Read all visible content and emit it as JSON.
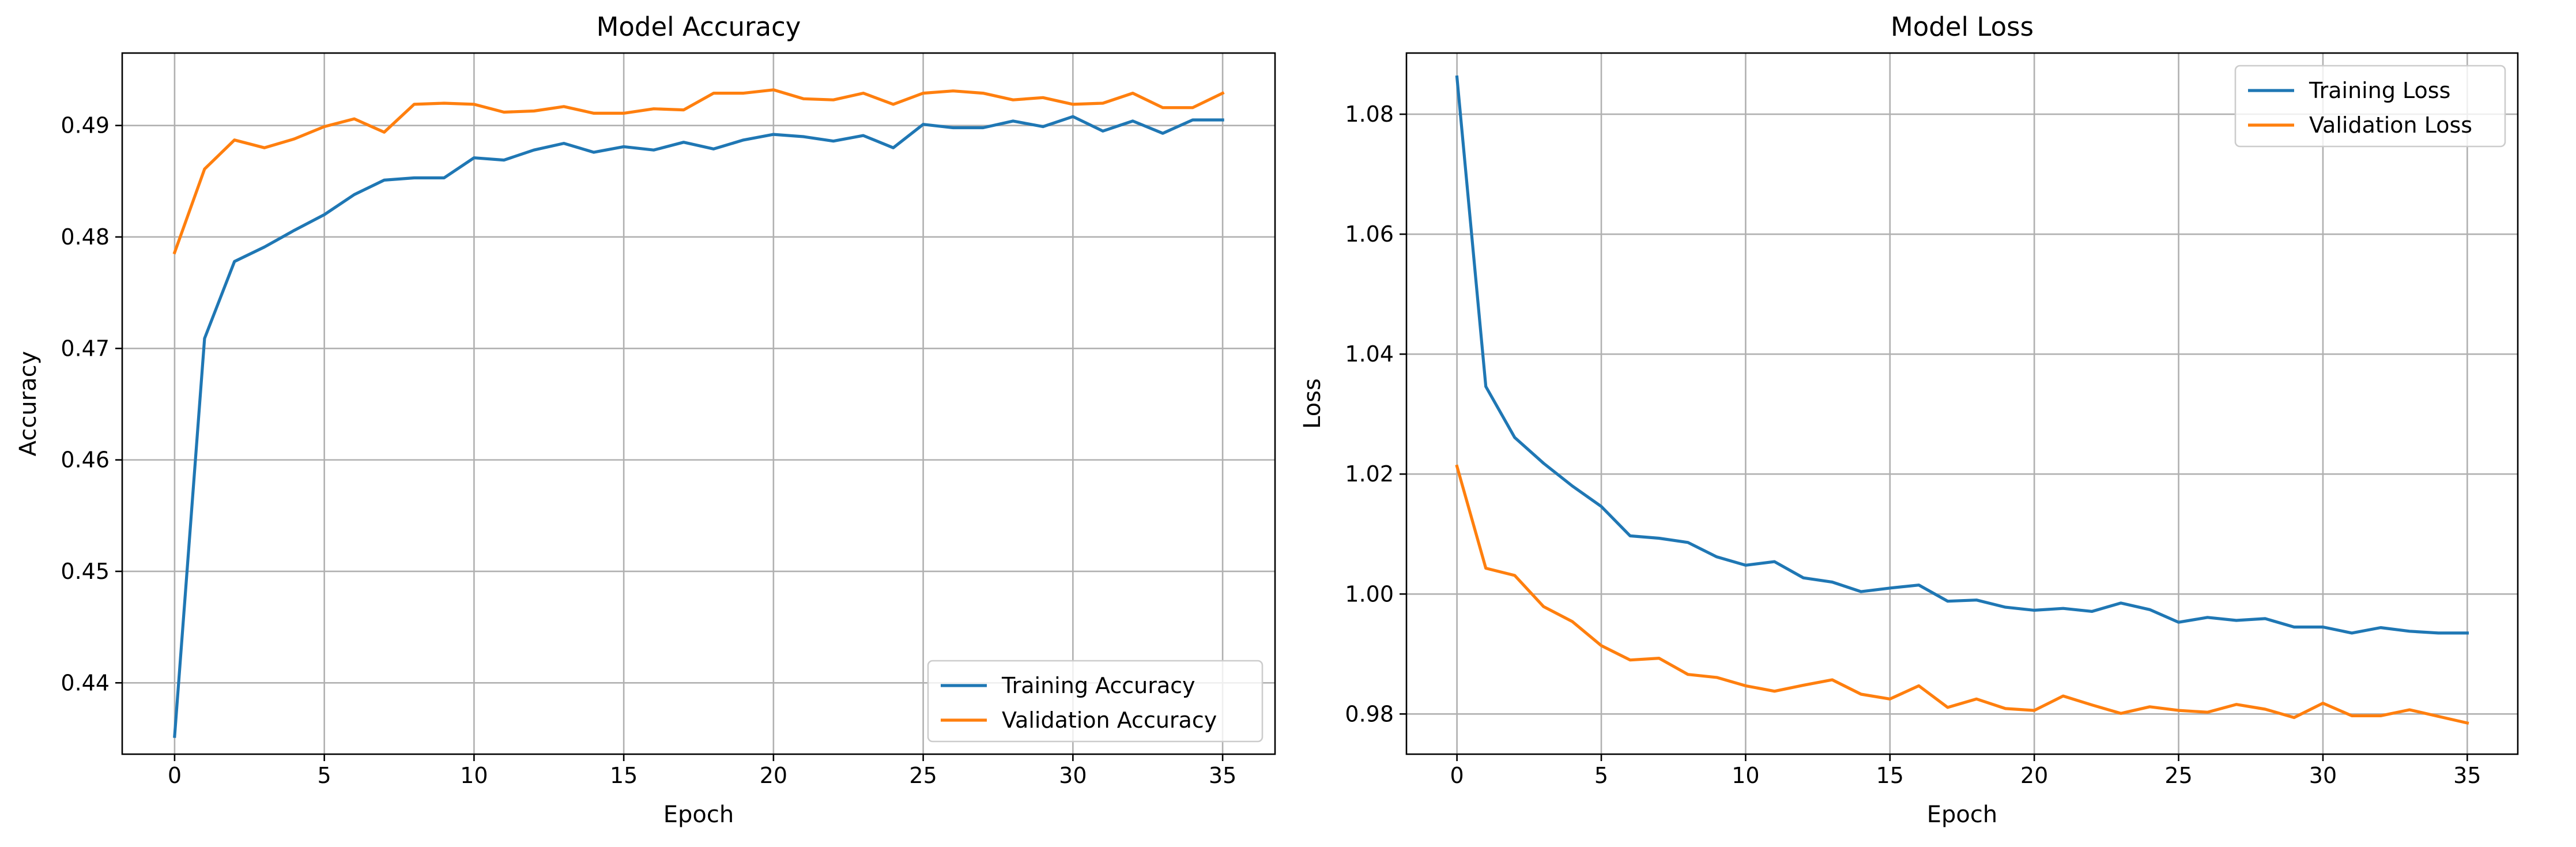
{
  "chart_data": [
    {
      "type": "line",
      "title": "Model Accuracy",
      "xlabel": "Epoch",
      "ylabel": "Accuracy",
      "xlim": [
        -1.75,
        36.75
      ],
      "ylim": [
        0.4336,
        0.4965
      ],
      "xticks": [
        0,
        5,
        10,
        15,
        20,
        25,
        30,
        35
      ],
      "yticks": [
        0.44,
        0.45,
        0.46,
        0.47,
        0.48,
        0.49
      ],
      "ytick_labels": [
        "0.44",
        "0.45",
        "0.46",
        "0.47",
        "0.48",
        "0.49"
      ],
      "grid": true,
      "legend_position": "lower right",
      "x": [
        0,
        1,
        2,
        3,
        4,
        5,
        6,
        7,
        8,
        9,
        10,
        11,
        12,
        13,
        14,
        15,
        16,
        17,
        18,
        19,
        20,
        21,
        22,
        23,
        24,
        25,
        26,
        27,
        28,
        29,
        30,
        31,
        32,
        33,
        34,
        35
      ],
      "series": [
        {
          "name": "Training Accuracy",
          "color": "#1f77b4",
          "values": [
            0.4352,
            0.4709,
            0.4778,
            0.4791,
            0.4806,
            0.482,
            0.4838,
            0.4851,
            0.4853,
            0.4853,
            0.4871,
            0.4869,
            0.4878,
            0.4884,
            0.4876,
            0.4881,
            0.4878,
            0.4885,
            0.4879,
            0.4887,
            0.4892,
            0.489,
            0.4886,
            0.4891,
            0.488,
            0.4901,
            0.4898,
            0.4898,
            0.4904,
            0.4899,
            0.4908,
            0.4895,
            0.4904,
            0.4893,
            0.4905,
            0.4905
          ]
        },
        {
          "name": "Validation Accuracy",
          "color": "#ff7f0e",
          "values": [
            0.4786,
            0.4861,
            0.4887,
            0.488,
            0.4888,
            0.4899,
            0.4906,
            0.4894,
            0.4919,
            0.492,
            0.4919,
            0.4912,
            0.4913,
            0.4917,
            0.4911,
            0.4911,
            0.4915,
            0.4914,
            0.4929,
            0.4929,
            0.4932,
            0.4924,
            0.4923,
            0.4929,
            0.4919,
            0.4929,
            0.4931,
            0.4929,
            0.4923,
            0.4925,
            0.4919,
            0.492,
            0.4929,
            0.4916,
            0.4916,
            0.4929
          ]
        }
      ]
    },
    {
      "type": "line",
      "title": "Model Loss",
      "xlabel": "Epoch",
      "ylabel": "Loss",
      "xlim": [
        -1.75,
        36.75
      ],
      "ylim": [
        0.9733,
        1.0902
      ],
      "xticks": [
        0,
        5,
        10,
        15,
        20,
        25,
        30,
        35
      ],
      "yticks": [
        0.98,
        1.0,
        1.02,
        1.04,
        1.06,
        1.08
      ],
      "ytick_labels": [
        "0.98",
        "1.00",
        "1.02",
        "1.04",
        "1.06",
        "1.08"
      ],
      "grid": true,
      "legend_position": "upper right",
      "x": [
        0,
        1,
        2,
        3,
        4,
        5,
        6,
        7,
        8,
        9,
        10,
        11,
        12,
        13,
        14,
        15,
        16,
        17,
        18,
        19,
        20,
        21,
        22,
        23,
        24,
        25,
        26,
        27,
        28,
        29,
        30,
        31,
        32,
        33,
        34,
        35
      ],
      "series": [
        {
          "name": "Training Loss",
          "color": "#1f77b4",
          "values": [
            1.0862,
            1.0346,
            1.0261,
            1.0218,
            1.018,
            1.0146,
            1.0097,
            1.0093,
            1.0086,
            1.0062,
            1.0048,
            1.0054,
            1.0027,
            1.002,
            1.0004,
            1.001,
            1.0015,
            0.9988,
            0.999,
            0.9978,
            0.9973,
            0.9976,
            0.9971,
            0.9985,
            0.9974,
            0.9953,
            0.9961,
            0.9956,
            0.9959,
            0.9945,
            0.9945,
            0.9935,
            0.9944,
            0.9938,
            0.9935,
            0.9935
          ]
        },
        {
          "name": "Validation Loss",
          "color": "#ff7f0e",
          "values": [
            1.0213,
            1.0043,
            1.0031,
            0.9979,
            0.9954,
            0.9914,
            0.989,
            0.9893,
            0.9866,
            0.9861,
            0.9847,
            0.9838,
            0.9848,
            0.9857,
            0.9833,
            0.9825,
            0.9847,
            0.9811,
            0.9825,
            0.9809,
            0.9806,
            0.983,
            0.9815,
            0.9801,
            0.9812,
            0.9806,
            0.9803,
            0.9816,
            0.9808,
            0.9794,
            0.9818,
            0.9797,
            0.9797,
            0.9807,
            0.9796,
            0.9785
          ]
        }
      ]
    }
  ]
}
